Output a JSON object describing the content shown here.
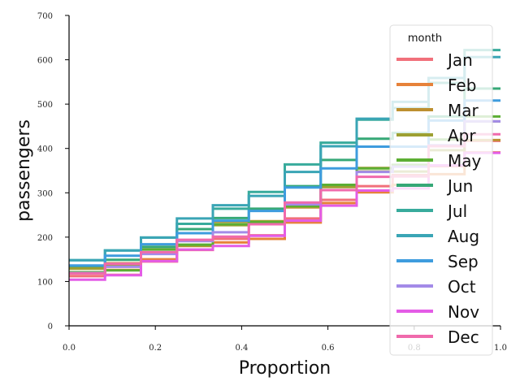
{
  "chart_data": {
    "type": "line",
    "subtype": "ecdf-step",
    "xlabel": "Proportion",
    "ylabel": "passengers",
    "xlim": [
      0.0,
      1.0
    ],
    "ylim": [
      0,
      700
    ],
    "xticks": [
      0.0,
      0.2,
      0.4,
      0.6,
      0.8,
      1.0
    ],
    "xtick_labels": [
      "0.0",
      "0.2",
      "0.4",
      "0.6",
      "0.8",
      "1.0"
    ],
    "yticks": [
      0,
      100,
      200,
      300,
      400,
      500,
      600,
      700
    ],
    "ytick_labels": [
      "0",
      "100",
      "200",
      "300",
      "400",
      "500",
      "600",
      "700"
    ],
    "grid": false,
    "legend": {
      "title": "month",
      "placement": "right"
    },
    "series": [
      {
        "name": "Jan",
        "color": "#f1707b",
        "values": [
          112,
          115,
          145,
          171,
          196,
          204,
          242,
          284,
          315,
          340,
          360,
          417
        ]
      },
      {
        "name": "Feb",
        "color": "#e6823a",
        "values": [
          118,
          126,
          150,
          180,
          188,
          196,
          233,
          277,
          301,
          318,
          342,
          391
        ]
      },
      {
        "name": "Mar",
        "color": "#bd9030",
        "values": [
          132,
          141,
          178,
          193,
          235,
          236,
          267,
          317,
          356,
          362,
          406,
          419
        ]
      },
      {
        "name": "Apr",
        "color": "#9da032",
        "values": [
          129,
          135,
          163,
          181,
          227,
          235,
          269,
          313,
          348,
          348,
          396,
          461
        ]
      },
      {
        "name": "May",
        "color": "#5cae33",
        "values": [
          121,
          125,
          172,
          183,
          229,
          234,
          270,
          318,
          355,
          363,
          420,
          472
        ]
      },
      {
        "name": "Jun",
        "color": "#36a877",
        "values": [
          135,
          149,
          178,
          218,
          243,
          264,
          315,
          374,
          422,
          435,
          472,
          535
        ]
      },
      {
        "name": "Jul",
        "color": "#38ab9c",
        "values": [
          148,
          170,
          199,
          230,
          264,
          302,
          364,
          413,
          465,
          491,
          548,
          622
        ]
      },
      {
        "name": "Aug",
        "color": "#3aa5b5",
        "values": [
          148,
          170,
          199,
          242,
          272,
          293,
          347,
          405,
          467,
          505,
          559,
          606
        ]
      },
      {
        "name": "Sep",
        "color": "#3e9cde",
        "values": [
          136,
          158,
          184,
          209,
          237,
          259,
          312,
          355,
          404,
          404,
          463,
          508
        ]
      },
      {
        "name": "Oct",
        "color": "#a38be8",
        "values": [
          119,
          133,
          162,
          191,
          211,
          229,
          274,
          306,
          347,
          359,
          407,
          461
        ]
      },
      {
        "name": "Nov",
        "color": "#e45ce6",
        "values": [
          104,
          114,
          146,
          172,
          180,
          203,
          237,
          271,
          305,
          310,
          362,
          390
        ]
      },
      {
        "name": "Dec",
        "color": "#f06aac",
        "values": [
          118,
          140,
          166,
          194,
          201,
          229,
          278,
          306,
          336,
          337,
          405,
          432
        ]
      }
    ]
  }
}
